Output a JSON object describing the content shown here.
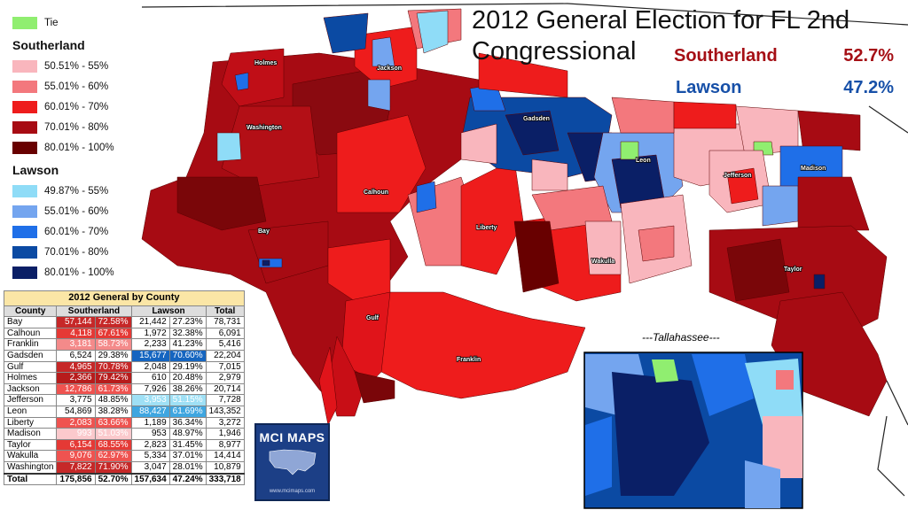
{
  "title": "2012 General Election for FL 2nd Congressional",
  "candidates": [
    {
      "name": "Southerland",
      "pct": "52.7%",
      "color": "#a50f15"
    },
    {
      "name": "Lawson",
      "pct": "47.2%",
      "color": "#1750a8"
    }
  ],
  "legend": {
    "tie": {
      "label": "Tie",
      "color": "#90ee70"
    },
    "southerland_header": "Southerland",
    "southerland": [
      {
        "label": "50.51% - 55%",
        "color": "#f9b6bd"
      },
      {
        "label": "55.01% - 60%",
        "color": "#f3787d"
      },
      {
        "label": "60.01% - 70%",
        "color": "#ee1c1c"
      },
      {
        "label": "70.01% - 80%",
        "color": "#a70b13"
      },
      {
        "label": "80.01% - 100%",
        "color": "#680000"
      }
    ],
    "lawson_header": "Lawson",
    "lawson": [
      {
        "label": "49.87% - 55%",
        "color": "#8fdcf7"
      },
      {
        "label": "55.01% - 60%",
        "color": "#74a5ef"
      },
      {
        "label": "60.01% - 70%",
        "color": "#1f6fe8"
      },
      {
        "label": "70.01% - 80%",
        "color": "#0b4aa3"
      },
      {
        "label": "80.01% - 100%",
        "color": "#0a1f66"
      }
    ]
  },
  "table": {
    "caption": "2012 General by County",
    "headers": [
      "County",
      "Southerland",
      "Lawson",
      "Total"
    ],
    "rows": [
      {
        "county": "Bay",
        "s_votes": "57,144",
        "s_pct": "72.58%",
        "l_votes": "21,442",
        "l_pct": "27.23%",
        "total": "78,731",
        "s_color": "#c62828",
        "l_color": ""
      },
      {
        "county": "Calhoun",
        "s_votes": "4,118",
        "s_pct": "67.61%",
        "l_votes": "1,972",
        "l_pct": "32.38%",
        "total": "6,091",
        "s_color": "#e53935",
        "l_color": ""
      },
      {
        "county": "Franklin",
        "s_votes": "3,181",
        "s_pct": "58.73%",
        "l_votes": "2,233",
        "l_pct": "41.23%",
        "total": "5,416",
        "s_color": "#f48a8a",
        "l_color": ""
      },
      {
        "county": "Gadsden",
        "s_votes": "6,524",
        "s_pct": "29.38%",
        "l_votes": "15,677",
        "l_pct": "70.60%",
        "total": "22,204",
        "s_color": "",
        "l_color": "#1565c0"
      },
      {
        "county": "Gulf",
        "s_votes": "4,965",
        "s_pct": "70.78%",
        "l_votes": "2,048",
        "l_pct": "29.19%",
        "total": "7,015",
        "s_color": "#c62828",
        "l_color": ""
      },
      {
        "county": "Holmes",
        "s_votes": "2,366",
        "s_pct": "79.42%",
        "l_votes": "610",
        "l_pct": "20.48%",
        "total": "2,979",
        "s_color": "#b71c1c",
        "l_color": ""
      },
      {
        "county": "Jackson",
        "s_votes": "12,786",
        "s_pct": "61.73%",
        "l_votes": "7,926",
        "l_pct": "38.26%",
        "total": "20,714",
        "s_color": "#ef5350",
        "l_color": ""
      },
      {
        "county": "Jefferson",
        "s_votes": "3,775",
        "s_pct": "48.85%",
        "l_votes": "3,953",
        "l_pct": "51.15%",
        "total": "7,728",
        "s_color": "",
        "l_color": "#9fe0f5"
      },
      {
        "county": "Leon",
        "s_votes": "54,869",
        "s_pct": "38.28%",
        "l_votes": "88,427",
        "l_pct": "61.69%",
        "total": "143,352",
        "s_color": "",
        "l_color": "#3fa6e0"
      },
      {
        "county": "Liberty",
        "s_votes": "2,083",
        "s_pct": "63.66%",
        "l_votes": "1,189",
        "l_pct": "36.34%",
        "total": "3,272",
        "s_color": "#ef5350",
        "l_color": ""
      },
      {
        "county": "Madison",
        "s_votes": "993",
        "s_pct": "51.03%",
        "l_votes": "953",
        "l_pct": "48.97%",
        "total": "1,946",
        "s_color": "#fbc9cc",
        "l_color": ""
      },
      {
        "county": "Taylor",
        "s_votes": "6,154",
        "s_pct": "68.55%",
        "l_votes": "2,823",
        "l_pct": "31.45%",
        "total": "8,977",
        "s_color": "#e53935",
        "l_color": ""
      },
      {
        "county": "Wakulla",
        "s_votes": "9,076",
        "s_pct": "62.97%",
        "l_votes": "5,334",
        "l_pct": "37.01%",
        "total": "14,414",
        "s_color": "#ef5350",
        "l_color": ""
      },
      {
        "county": "Washington",
        "s_votes": "7,822",
        "s_pct": "71.90%",
        "l_votes": "3,047",
        "l_pct": "28.01%",
        "total": "10,879",
        "s_color": "#c62828",
        "l_color": ""
      }
    ],
    "total": {
      "county": "Total",
      "s_votes": "175,856",
      "s_pct": "52.70%",
      "l_votes": "157,634",
      "l_pct": "47.24%",
      "total": "333,718"
    }
  },
  "map_labels": [
    "Holmes",
    "Jackson",
    "Washington",
    "Gadsden",
    "Leon",
    "Calhoun",
    "Jefferson",
    "Madison",
    "Bay",
    "Liberty",
    "Wakulla",
    "Taylor",
    "Gulf",
    "Franklin"
  ],
  "inset_title": "---Tallahassee---",
  "logo": {
    "text": "MCI MAPS",
    "url": "www.mcimaps.com"
  }
}
